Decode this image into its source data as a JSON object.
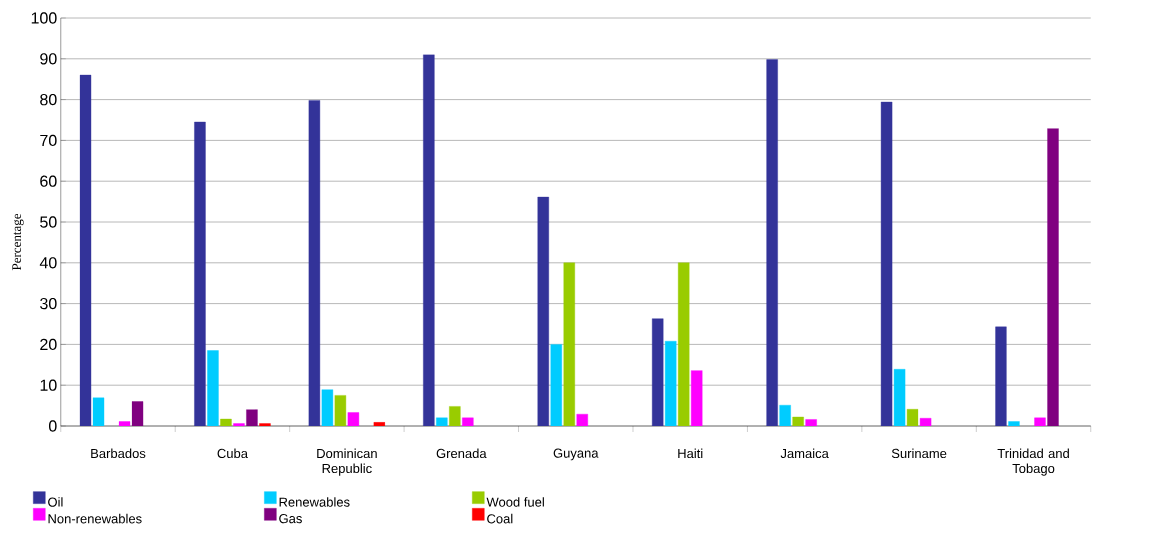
{
  "chart_data": {
    "type": "bar",
    "ylabel": "Percentage",
    "categories": [
      "Barbados",
      "Cuba",
      "Dominican Republic",
      "Grenada",
      "Guyana",
      "Haiti",
      "Jamaica",
      "Suriname",
      "Trinidad and Tobago"
    ],
    "series": [
      {
        "name": "Oil",
        "color": "#333399",
        "values": [
          86.0,
          74.5,
          79.8,
          91.0,
          56.1,
          26.3,
          89.8,
          79.4,
          24.3
        ]
      },
      {
        "name": "Renewables",
        "color": "#00ccff",
        "values": [
          6.9,
          18.5,
          8.9,
          2.0,
          20.0,
          20.8,
          5.1,
          13.9,
          1.1
        ]
      },
      {
        "name": "Wood fuel",
        "color": "#99cc00",
        "values": [
          null,
          1.7,
          7.5,
          4.8,
          40.0,
          40.0,
          2.2,
          4.1,
          null
        ]
      },
      {
        "name": "Non-renewables",
        "color": "#ff00ff",
        "values": [
          1.1,
          0.6,
          3.3,
          2.0,
          2.9,
          13.6,
          1.6,
          1.9,
          2.0
        ]
      },
      {
        "name": "Gas",
        "color": "#800080",
        "values": [
          6.0,
          4.0,
          null,
          null,
          null,
          null,
          null,
          null,
          72.9
        ]
      },
      {
        "name": "Coal",
        "color": "#ff0000",
        "values": [
          null,
          0.6,
          0.9,
          null,
          null,
          null,
          null,
          null,
          null
        ]
      }
    ],
    "ylim": [
      0,
      100
    ],
    "yticks": [
      0,
      10,
      20,
      30,
      40,
      50,
      60,
      70,
      80,
      90,
      100
    ],
    "grid": "y",
    "legend": "bottom"
  }
}
